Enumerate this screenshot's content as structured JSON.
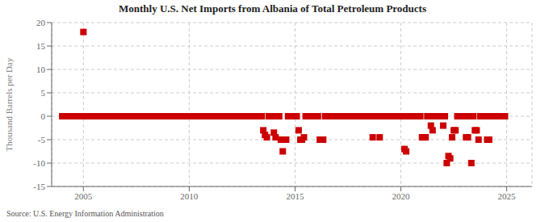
{
  "chart_data": {
    "type": "scatter",
    "title": "Monthly U.S. Net Imports from Albania of Total Petroleum Products",
    "ylabel": "Thousand Barrels per Day",
    "annotation": "Source: U.S. Energy Information Administration",
    "color": "#cc0000",
    "marker": "square",
    "grid": true,
    "xlim": [
      2003.5,
      2026.2
    ],
    "xticks": [
      2005,
      2010,
      2015,
      2020,
      2025
    ],
    "ylim": [
      -15,
      20
    ],
    "yticks": [
      -15,
      -10,
      -5,
      0,
      5,
      10,
      15,
      20
    ],
    "x": [
      2004.0,
      2004.08,
      2004.17,
      2004.25,
      2004.33,
      2004.42,
      2004.5,
      2004.58,
      2004.67,
      2004.75,
      2004.83,
      2004.92,
      2005.0,
      2005.08,
      2005.17,
      2005.25,
      2005.33,
      2005.42,
      2005.5,
      2005.58,
      2005.67,
      2005.75,
      2005.83,
      2005.92,
      2006.0,
      2006.08,
      2006.17,
      2006.25,
      2006.33,
      2006.42,
      2006.5,
      2006.58,
      2006.67,
      2006.75,
      2006.83,
      2006.92,
      2007.0,
      2007.08,
      2007.17,
      2007.25,
      2007.33,
      2007.42,
      2007.5,
      2007.58,
      2007.67,
      2007.75,
      2007.83,
      2007.92,
      2008.0,
      2008.08,
      2008.17,
      2008.25,
      2008.33,
      2008.42,
      2008.5,
      2008.58,
      2008.67,
      2008.75,
      2008.83,
      2008.92,
      2009.0,
      2009.08,
      2009.17,
      2009.25,
      2009.33,
      2009.42,
      2009.5,
      2009.58,
      2009.67,
      2009.75,
      2009.83,
      2009.92,
      2010.0,
      2010.08,
      2010.17,
      2010.25,
      2010.33,
      2010.42,
      2010.5,
      2010.58,
      2010.67,
      2010.75,
      2010.83,
      2010.92,
      2011.0,
      2011.08,
      2011.17,
      2011.25,
      2011.33,
      2011.42,
      2011.5,
      2011.58,
      2011.67,
      2011.75,
      2011.83,
      2011.92,
      2012.0,
      2012.08,
      2012.17,
      2012.25,
      2012.33,
      2012.42,
      2012.5,
      2012.58,
      2012.67,
      2012.75,
      2012.83,
      2012.92,
      2013.0,
      2013.08,
      2013.17,
      2013.25,
      2013.33,
      2013.42,
      2013.5,
      2013.58,
      2013.67,
      2013.75,
      2013.83,
      2013.92,
      2014.0,
      2014.08,
      2014.17,
      2014.25,
      2014.33,
      2014.42,
      2014.5,
      2014.58,
      2014.67,
      2014.75,
      2014.83,
      2014.92,
      2015.0,
      2015.08,
      2015.17,
      2015.25,
      2015.33,
      2015.42,
      2015.5,
      2015.58,
      2015.67,
      2015.75,
      2015.83,
      2015.92,
      2016.0,
      2016.08,
      2016.17,
      2016.25,
      2016.33,
      2016.42,
      2016.5,
      2016.58,
      2016.67,
      2016.75,
      2016.83,
      2016.92,
      2017.0,
      2017.08,
      2017.17,
      2017.25,
      2017.33,
      2017.42,
      2017.5,
      2017.58,
      2017.67,
      2017.75,
      2017.83,
      2017.92,
      2018.0,
      2018.08,
      2018.17,
      2018.25,
      2018.33,
      2018.42,
      2018.5,
      2018.58,
      2018.67,
      2018.75,
      2018.83,
      2018.92,
      2019.0,
      2019.08,
      2019.17,
      2019.25,
      2019.33,
      2019.42,
      2019.5,
      2019.58,
      2019.67,
      2019.75,
      2019.83,
      2019.92,
      2020.0,
      2020.08,
      2020.17,
      2020.25,
      2020.33,
      2020.42,
      2020.5,
      2020.58,
      2020.67,
      2020.75,
      2020.83,
      2020.92,
      2021.0,
      2021.08,
      2021.17,
      2021.25,
      2021.33,
      2021.42,
      2021.5,
      2021.58,
      2021.67,
      2021.75,
      2021.83,
      2021.92,
      2022.0,
      2022.08,
      2022.17,
      2022.25,
      2022.33,
      2022.42,
      2022.5,
      2022.58,
      2022.67,
      2022.75,
      2022.83,
      2022.92,
      2023.0,
      2023.08,
      2023.17,
      2023.25,
      2023.33,
      2023.42,
      2023.5,
      2023.58,
      2023.67,
      2023.75,
      2023.83,
      2023.92,
      2024.0,
      2024.08,
      2024.17,
      2024.25,
      2024.33,
      2024.42,
      2024.5,
      2024.58,
      2024.67,
      2024.75,
      2024.83,
      2024.92
    ],
    "values": [
      0,
      0,
      0,
      0,
      0,
      0,
      0,
      0,
      0,
      0,
      0,
      0,
      18,
      0,
      0,
      0,
      0,
      0,
      0,
      0,
      0,
      0,
      0,
      0,
      0,
      0,
      0,
      0,
      0,
      0,
      0,
      0,
      0,
      0,
      0,
      0,
      0,
      0,
      0,
      0,
      0,
      0,
      0,
      0,
      0,
      0,
      0,
      0,
      0,
      0,
      0,
      0,
      0,
      0,
      0,
      0,
      0,
      0,
      0,
      0,
      0,
      0,
      0,
      0,
      0,
      0,
      0,
      0,
      0,
      0,
      0,
      0,
      0,
      0,
      0,
      0,
      0,
      0,
      0,
      0,
      0,
      0,
      0,
      0,
      0,
      0,
      0,
      0,
      0,
      0,
      0,
      0,
      0,
      0,
      0,
      0,
      0,
      0,
      0,
      0,
      0,
      0,
      0,
      0,
      0,
      0,
      0,
      0,
      0,
      0,
      0,
      0,
      0,
      0,
      -3,
      -4,
      -4.5,
      0,
      0,
      0,
      -3.5,
      -4.5,
      0,
      0,
      -5,
      -7.5,
      -5,
      -5,
      0,
      0,
      0,
      0,
      0,
      0,
      -3,
      -5,
      -5,
      -4.5,
      0,
      0,
      0,
      0,
      0,
      0,
      0,
      0,
      -5,
      -5,
      -5,
      0,
      0,
      0,
      0,
      0,
      0,
      0,
      0,
      0,
      0,
      0,
      0,
      0,
      0,
      0,
      0,
      0,
      0,
      0,
      0,
      0,
      0,
      0,
      0,
      0,
      0,
      0,
      -4.5,
      0,
      0,
      0,
      -4.5,
      0,
      0,
      0,
      0,
      0,
      0,
      0,
      0,
      0,
      0,
      0,
      0,
      0,
      -7,
      -7.5,
      0,
      0,
      0,
      0,
      0,
      0,
      0,
      0,
      -4.5,
      -4.5,
      -4.5,
      0,
      0,
      -2,
      -3,
      0,
      0,
      0,
      0,
      0,
      -2,
      0,
      -10,
      -8.5,
      -9,
      -4.5,
      -3,
      -3,
      0,
      0,
      0,
      0,
      0,
      -4.5,
      -4.5,
      0,
      -10,
      0,
      -3,
      -3,
      -5,
      0,
      0,
      0,
      0,
      -5,
      -5,
      0,
      0,
      0,
      0,
      0,
      0,
      0,
      0,
      0
    ]
  }
}
